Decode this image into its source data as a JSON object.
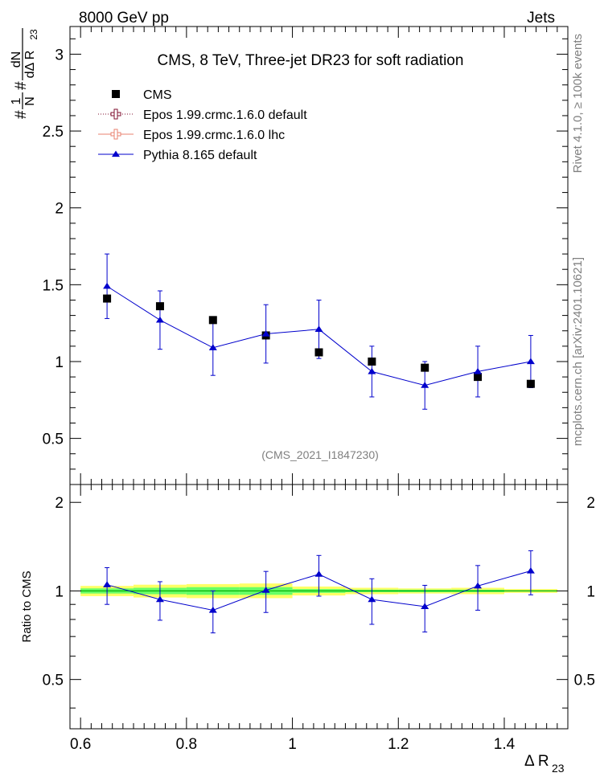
{
  "header": {
    "left": "8000 GeV pp",
    "right": "Jets"
  },
  "side_text": {
    "rivet": "Rivet 4.1.0, ≥ 100k events",
    "mcplots": "mcplots.cern.ch [arXiv:2401.10621]"
  },
  "chart_data": {
    "type": "line",
    "title": "CMS, 8 TeV, Three-jet DR23 for soft radiation",
    "analysis_id": "(CMS_2021_I1847230)",
    "xlabel": "Δ R",
    "xlabel_sub": "23",
    "ylabel": {
      "prefix": "#",
      "frac1_num": "1",
      "frac1_den": "N",
      "mid": "#",
      "frac2_num": "dN",
      "frac2_den": "dΔ R",
      "frac2_den_sub": "23"
    },
    "ratio_ylabel": "Ratio to CMS",
    "xlim": [
      0.58,
      1.52
    ],
    "ylim": [
      0.2,
      3.18
    ],
    "ratio_ylim": [
      0.34,
      2.3
    ],
    "x_ticks": [
      0.6,
      0.8,
      1.0,
      1.2,
      1.4
    ],
    "x_tick_labels": [
      "0.6",
      "0.8",
      "1",
      "1.2",
      "1.4"
    ],
    "y_ticks": [
      0.5,
      1.0,
      1.5,
      2.0,
      2.5,
      3.0
    ],
    "y_tick_labels": [
      "0.5",
      "1",
      "1.5",
      "2",
      "2.5",
      "3"
    ],
    "ratio_y_ticks": [
      0.5,
      1.0,
      2.0
    ],
    "ratio_y_tick_labels": [
      "0.5",
      "1",
      "2"
    ],
    "x": [
      0.65,
      0.75,
      0.85,
      0.95,
      1.05,
      1.15,
      1.25,
      1.35,
      1.45
    ],
    "bin_edges": [
      0.6,
      0.7,
      0.8,
      0.9,
      1.0,
      1.1,
      1.2,
      1.3,
      1.4,
      1.5
    ],
    "legend": [
      {
        "name": "CMS",
        "color": "#000000",
        "marker": "square"
      },
      {
        "name": "Epos 1.99.crmc.1.6.0 default",
        "color": "#7f0f2f",
        "marker": "open-cross"
      },
      {
        "name": "Epos 1.99.crmc.1.6.0 lhc",
        "color": "#e8806f",
        "marker": "open-cross"
      },
      {
        "name": "Pythia 8.165 default",
        "color": "#0000cc",
        "marker": "triangle"
      }
    ],
    "series": [
      {
        "name": "CMS",
        "values": [
          1.41,
          1.36,
          1.27,
          1.17,
          1.06,
          1.0,
          0.96,
          0.9,
          0.855
        ],
        "err": [
          0.02,
          0.02,
          0.02,
          0.02,
          0.02,
          0.02,
          0.02,
          0.02,
          0.02
        ]
      },
      {
        "name": "Pythia 8.165 default",
        "values": [
          1.49,
          1.27,
          1.09,
          1.18,
          1.21,
          0.935,
          0.845,
          0.935,
          1.0
        ],
        "err": [
          0.21,
          0.19,
          0.18,
          0.19,
          0.19,
          0.165,
          0.155,
          0.165,
          0.17
        ]
      }
    ],
    "ratio": {
      "values": [
        1.05,
        0.935,
        0.86,
        1.005,
        1.14,
        0.935,
        0.885,
        1.04,
        1.17
      ],
      "err": [
        0.15,
        0.14,
        0.14,
        0.16,
        0.18,
        0.165,
        0.16,
        0.18,
        0.2
      ]
    },
    "uncertainty_band": {
      "yellow": [
        [
          0.96,
          1.04
        ],
        [
          0.95,
          1.05
        ],
        [
          0.945,
          1.055
        ],
        [
          0.945,
          1.06
        ],
        [
          0.965,
          1.035
        ],
        [
          0.975,
          1.025
        ],
        [
          0.98,
          1.02
        ],
        [
          0.975,
          1.025
        ],
        [
          0.985,
          1.015
        ]
      ],
      "green": [
        [
          0.98,
          1.02
        ],
        [
          0.975,
          1.025
        ],
        [
          0.97,
          1.03
        ],
        [
          0.97,
          1.03
        ],
        [
          0.985,
          1.015
        ],
        [
          0.99,
          1.01
        ],
        [
          0.99,
          1.01
        ],
        [
          0.99,
          1.01
        ],
        [
          0.995,
          1.005
        ]
      ],
      "yellow_color": "#ffff66",
      "green_color": "#66ff66"
    }
  }
}
